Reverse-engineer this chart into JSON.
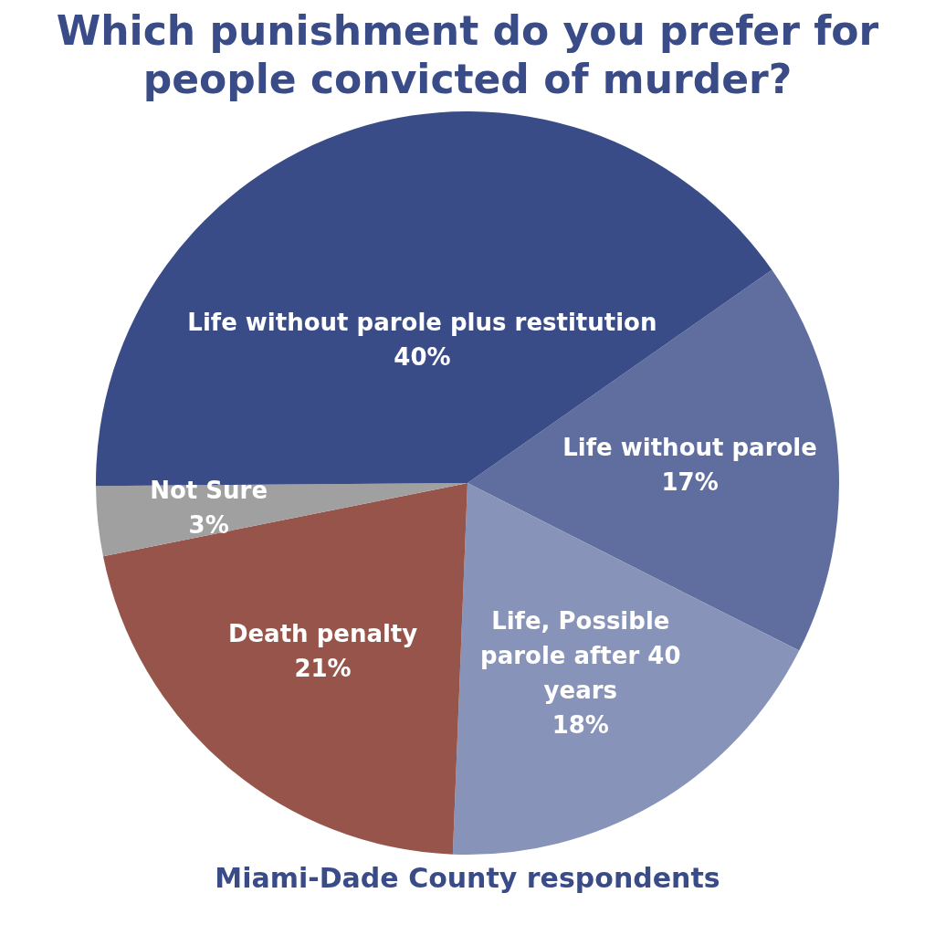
{
  "chart_data": {
    "type": "pie",
    "title": "Which punishment do you prefer for people convicted of murder?",
    "categories": [
      "Life without parole",
      "Life, Possible parole after 40 years",
      "Death penalty",
      "Not Sure",
      "Life without parole plus restitution"
    ],
    "values": [
      17,
      18,
      21,
      3,
      40
    ],
    "value_labels": [
      "17%",
      "18%",
      "21%",
      "3%",
      "40%"
    ],
    "colors": [
      "#5f6e9e",
      "#8793b8",
      "#96544a",
      "#a0a0a0",
      "#3a4c87"
    ],
    "legend": false,
    "annotations": [
      "Miami-Dade County respondents"
    ]
  }
}
